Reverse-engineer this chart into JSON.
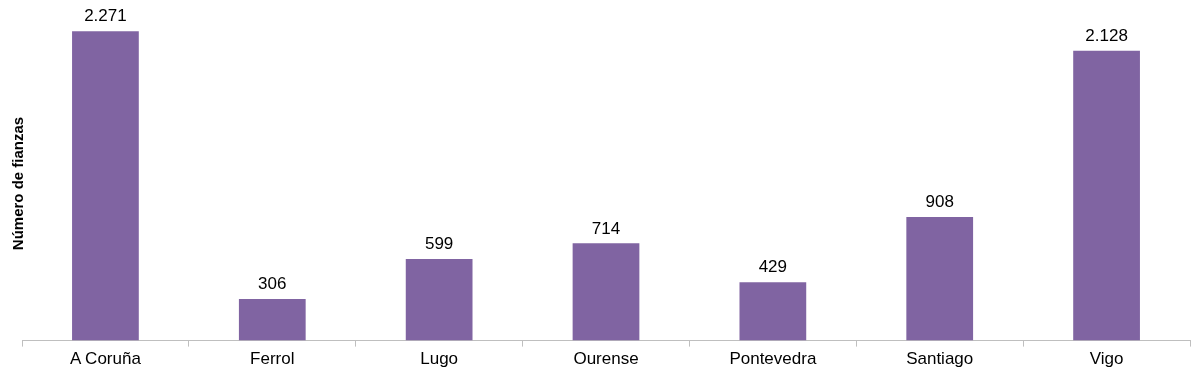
{
  "chart_data": {
    "type": "bar",
    "ylabel": "Número de fianzas",
    "categories": [
      "A Coruña",
      "Ferrol",
      "Lugo",
      "Ourense",
      "Pontevedra",
      "Santiago",
      "Vigo"
    ],
    "values": [
      2271,
      306,
      599,
      714,
      429,
      908,
      2128
    ],
    "value_labels": [
      "2.271",
      "306",
      "599",
      "714",
      "429",
      "908",
      "2.128"
    ],
    "color": "#8064a2",
    "grid": false,
    "legend": false
  }
}
